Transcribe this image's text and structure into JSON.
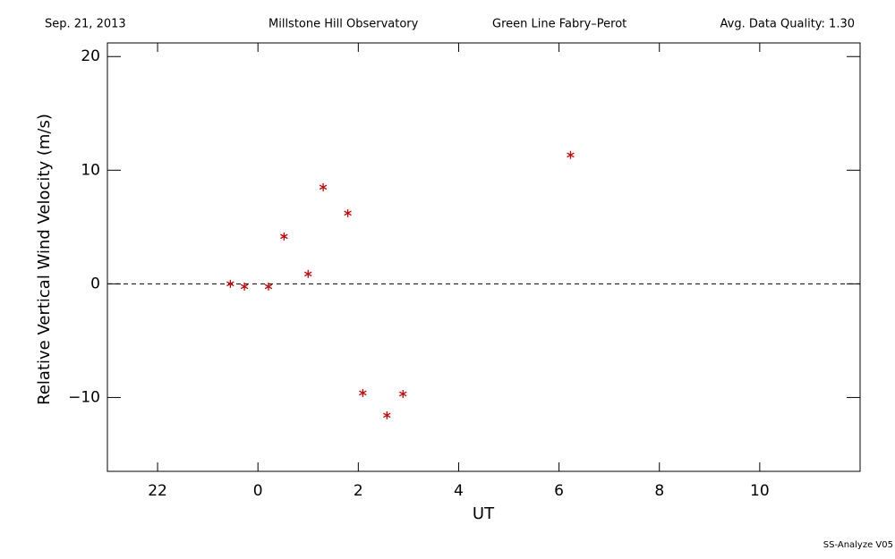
{
  "chart_data": {
    "type": "scatter",
    "header": [
      "Sep. 21, 2013",
      "Millstone Hill Observatory",
      "Green Line Fabry–Perot",
      "Avg. Data Quality: 1.30"
    ],
    "footer": "SS-Analyze V05",
    "xlabel": "UT",
    "ylabel": "Relative Vertical Wind Velocity (m/s)",
    "xlim": [
      -3,
      12
    ],
    "ylim": [
      -16.5,
      21.2
    ],
    "xticks": [
      {
        "value": -2,
        "label": "22"
      },
      0,
      2,
      4,
      6,
      8,
      10
    ],
    "yticks": [
      {
        "value": -10,
        "label": "−10"
      },
      0,
      10,
      20
    ],
    "reference_line": 0,
    "series": [
      {
        "color": "#d00000",
        "x": [
          -0.55,
          -0.27,
          0.21,
          0.52,
          1.0,
          1.3,
          1.79,
          2.09,
          2.57,
          2.89,
          6.23
        ],
        "values": [
          0,
          -0.24,
          -0.24,
          4.17,
          0.87,
          8.5,
          6.22,
          -9.6,
          -11.57,
          -9.69,
          11.34
        ]
      }
    ]
  }
}
